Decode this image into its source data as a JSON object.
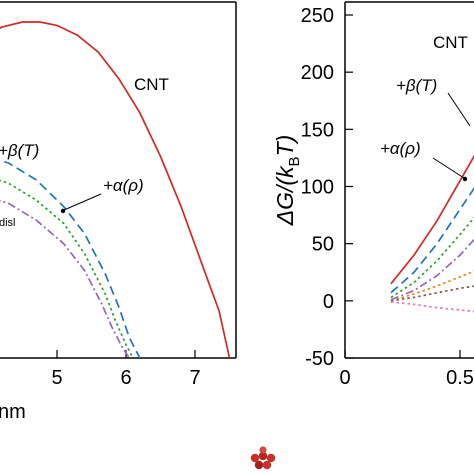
{
  "chart_data": [
    {
      "type": "line",
      "panel": "left (cropped)",
      "xlabel": "nm",
      "xticks": [
        5,
        6,
        7
      ],
      "xlim": [
        3.85,
        7.55
      ],
      "ylim": [
        0,
        1
      ],
      "series": [
        {
          "name": "CNT",
          "color": "#d62728",
          "style": "solid",
          "x": [
            3.85,
            4.2,
            4.5,
            4.75,
            5.0,
            5.3,
            5.6,
            5.9,
            6.2,
            6.5,
            6.8,
            7.1,
            7.35,
            7.5
          ],
          "y": [
            0.94,
            0.985,
            1.0,
            1.0,
            0.99,
            0.96,
            0.91,
            0.83,
            0.73,
            0.6,
            0.45,
            0.28,
            0.14,
            0.0
          ]
        },
        {
          "name": "+β(T)",
          "color": "#1f77b4",
          "style": "dashed",
          "x": [
            3.85,
            4.3,
            4.7,
            5.1,
            5.4,
            5.7,
            5.9,
            6.05,
            6.2
          ],
          "y": [
            0.61,
            0.58,
            0.53,
            0.45,
            0.37,
            0.25,
            0.15,
            0.06,
            0.0
          ]
        },
        {
          "name": "+α(ρ)",
          "color": "#2ca02c",
          "style": "dotted",
          "x": [
            3.85,
            4.3,
            4.7,
            5.1,
            5.4,
            5.7,
            5.85,
            6.0,
            6.1
          ],
          "y": [
            0.55,
            0.52,
            0.47,
            0.4,
            0.31,
            0.19,
            0.11,
            0.04,
            0.0
          ]
        },
        {
          "name": "disl",
          "color": "#9467bd",
          "style": "dashdot",
          "x": [
            3.85,
            4.3,
            4.7,
            5.1,
            5.4,
            5.65,
            5.8,
            5.95,
            6.05
          ],
          "y": [
            0.49,
            0.46,
            0.41,
            0.34,
            0.26,
            0.16,
            0.09,
            0.03,
            0.0
          ]
        }
      ],
      "annotations": [
        "CNT",
        "+β(T)",
        "+α(ρ)",
        "disl"
      ]
    },
    {
      "type": "line",
      "panel": "right (cropped)",
      "ylabel_parts": [
        "ΔG/(k",
        "B",
        "T)"
      ],
      "xticks": [
        "0",
        "0.5"
      ],
      "xtick_values": [
        0,
        0.5
      ],
      "yticks": [
        250,
        200,
        150,
        100,
        50,
        0,
        -50
      ],
      "xlim": [
        0,
        0.78
      ],
      "ylim": [
        -50,
        250
      ],
      "series": [
        {
          "name": "CNT",
          "color": "#d62728",
          "style": "solid",
          "x": [
            0.2,
            0.3,
            0.4,
            0.5,
            0.6,
            0.7,
            0.78
          ],
          "y": [
            15,
            40,
            70,
            105,
            140,
            178,
            210
          ]
        },
        {
          "name": "+β(T)",
          "color": "#1f77b4",
          "style": "dashed",
          "x": [
            0.2,
            0.3,
            0.4,
            0.5,
            0.6,
            0.7,
            0.78
          ],
          "y": [
            7,
            25,
            50,
            80,
            110,
            140,
            165
          ]
        },
        {
          "name": "+α(ρ)",
          "color": "#2ca02c",
          "style": "dotted",
          "x": [
            0.2,
            0.3,
            0.4,
            0.5,
            0.6,
            0.7,
            0.78
          ],
          "y": [
            3,
            16,
            35,
            58,
            82,
            106,
            125
          ]
        },
        {
          "name": "",
          "color": "#9467bd",
          "style": "dashdot",
          "x": [
            0.2,
            0.3,
            0.4,
            0.5,
            0.6,
            0.7,
            0.78
          ],
          "y": [
            1,
            9,
            22,
            40,
            62,
            84,
            102
          ]
        },
        {
          "name": "",
          "color": "#ff7f0e",
          "style": "dotted",
          "x": [
            0.2,
            0.3,
            0.4,
            0.5,
            0.6,
            0.7,
            0.78
          ],
          "y": [
            0,
            6,
            13,
            21,
            29,
            38,
            45
          ]
        },
        {
          "name": "",
          "color": "#8c564b",
          "style": "dotted",
          "x": [
            0.2,
            0.3,
            0.4,
            0.5,
            0.6,
            0.7,
            0.78
          ],
          "y": [
            0,
            3,
            7,
            11,
            14,
            17,
            19
          ]
        },
        {
          "name": "",
          "color": "#e377c2",
          "style": "dotted",
          "x": [
            0.2,
            0.3,
            0.4,
            0.5,
            0.6,
            0.7,
            0.78
          ],
          "y": [
            -1,
            -3,
            -6,
            -8,
            -10,
            -12,
            -13
          ]
        }
      ],
      "annotations": [
        "CNT",
        "+β(T)",
        "+α(ρ)"
      ]
    }
  ]
}
